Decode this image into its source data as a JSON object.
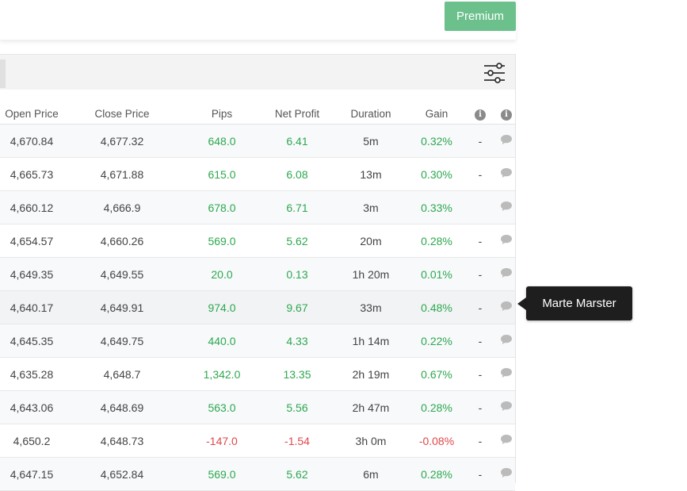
{
  "header": {
    "premium_label": "Premium"
  },
  "table": {
    "columns": [
      "Open Price",
      "Close Price",
      "Pips",
      "Net Profit",
      "Duration",
      "Gain"
    ],
    "rows": [
      {
        "open": "4,670.84",
        "close": "4,677.32",
        "pips": "648.0",
        "profit": "6.41",
        "duration": "5m",
        "gain": "0.32%",
        "dash": "-",
        "sign": "pos"
      },
      {
        "open": "4,665.73",
        "close": "4,671.88",
        "pips": "615.0",
        "profit": "6.08",
        "duration": "13m",
        "gain": "0.30%",
        "dash": "-",
        "sign": "pos"
      },
      {
        "open": "4,660.12",
        "close": "4,666.9",
        "pips": "678.0",
        "profit": "6.71",
        "duration": "3m",
        "gain": "0.33%",
        "dash": "",
        "sign": "pos"
      },
      {
        "open": "4,654.57",
        "close": "4,660.26",
        "pips": "569.0",
        "profit": "5.62",
        "duration": "20m",
        "gain": "0.28%",
        "dash": "-",
        "sign": "pos"
      },
      {
        "open": "4,649.35",
        "close": "4,649.55",
        "pips": "20.0",
        "profit": "0.13",
        "duration": "1h 20m",
        "gain": "0.01%",
        "dash": "-",
        "sign": "pos"
      },
      {
        "open": "4,640.17",
        "close": "4,649.91",
        "pips": "974.0",
        "profit": "9.67",
        "duration": "33m",
        "gain": "0.48%",
        "dash": "-",
        "sign": "pos"
      },
      {
        "open": "4,645.35",
        "close": "4,649.75",
        "pips": "440.0",
        "profit": "4.33",
        "duration": "1h 14m",
        "gain": "0.22%",
        "dash": "-",
        "sign": "pos"
      },
      {
        "open": "4,635.28",
        "close": "4,648.7",
        "pips": "1,342.0",
        "profit": "13.35",
        "duration": "2h 19m",
        "gain": "0.67%",
        "dash": "-",
        "sign": "pos"
      },
      {
        "open": "4,643.06",
        "close": "4,648.69",
        "pips": "563.0",
        "profit": "5.56",
        "duration": "2h 47m",
        "gain": "0.28%",
        "dash": "-",
        "sign": "pos"
      },
      {
        "open": "4,650.2",
        "close": "4,648.73",
        "pips": "-147.0",
        "profit": "-1.54",
        "duration": "3h 0m",
        "gain": "-0.08%",
        "dash": "-",
        "sign": "neg"
      },
      {
        "open": "4,647.15",
        "close": "4,652.84",
        "pips": "569.0",
        "profit": "5.62",
        "duration": "6m",
        "gain": "0.28%",
        "dash": "-",
        "sign": "pos"
      }
    ]
  },
  "tooltip": {
    "text": "Marte Marster"
  },
  "colors": {
    "positive": "#2ea84f",
    "negative": "#e0474c",
    "premium": "#6cc08c",
    "icon": "#8a8a8a"
  },
  "icons": {
    "filter": "sliders-icon",
    "info": "info-icon",
    "comment": "comment-icon"
  }
}
